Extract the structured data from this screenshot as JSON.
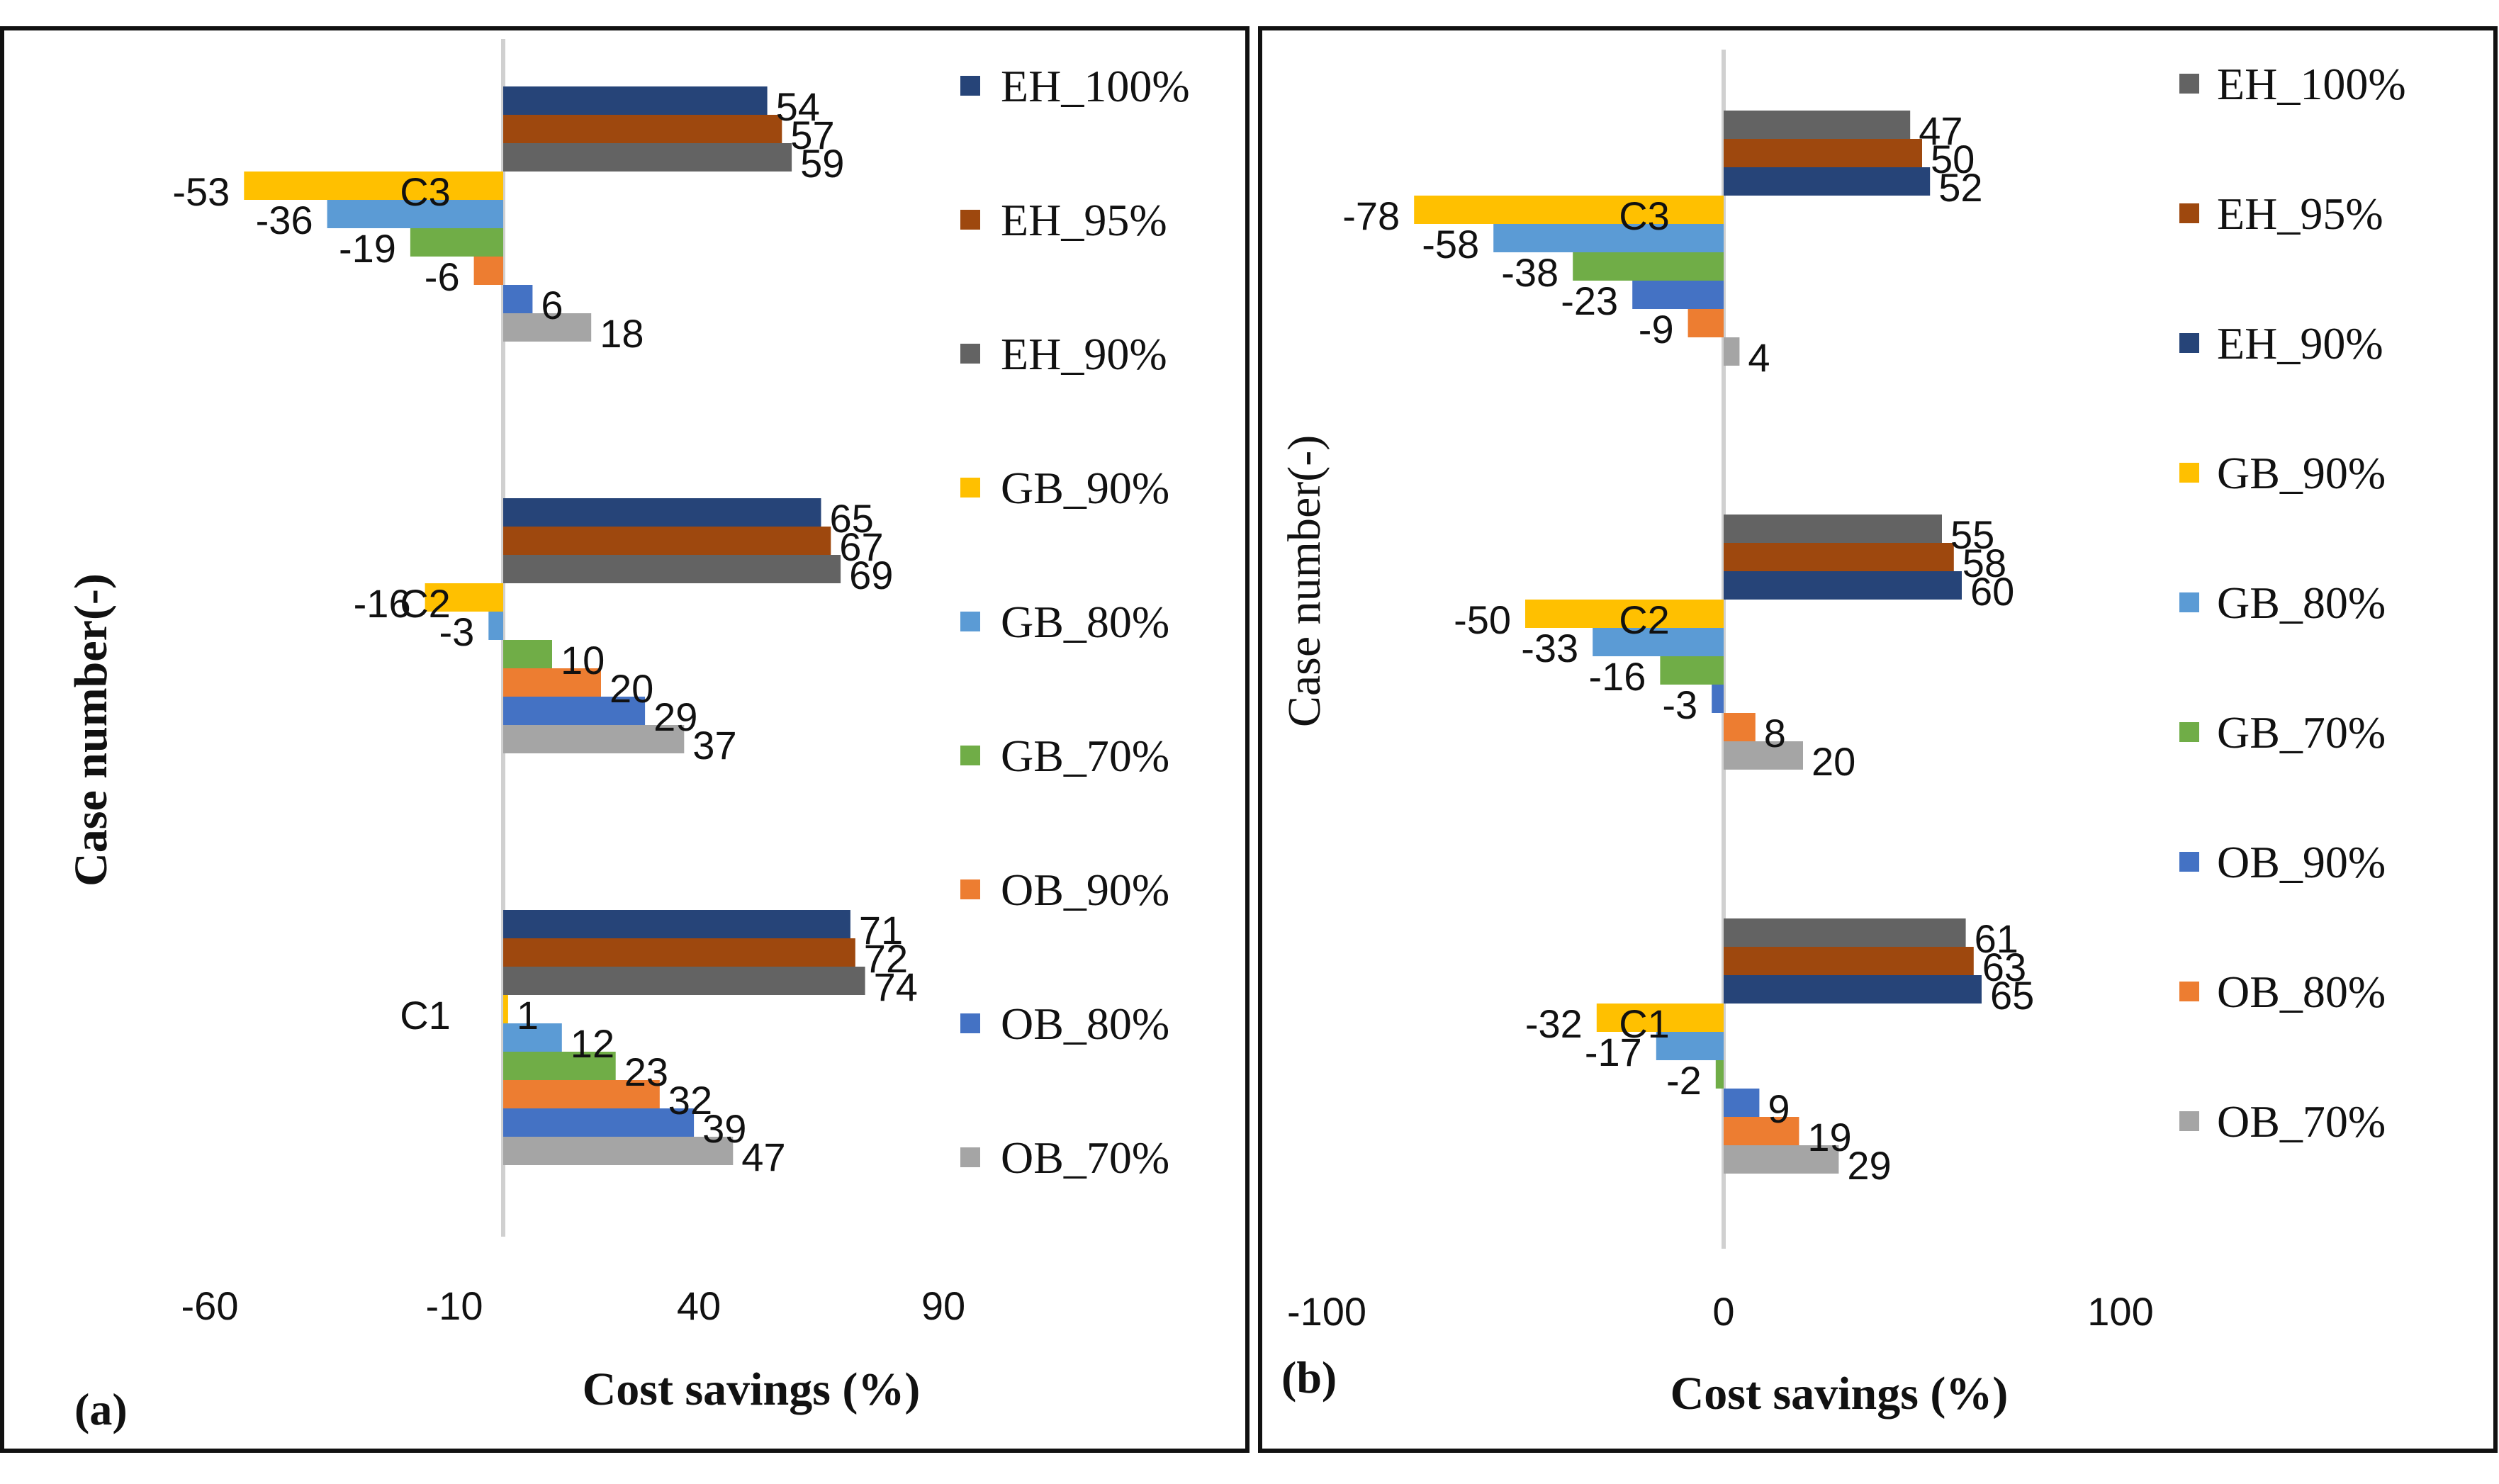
{
  "chart_data": [
    {
      "type": "bar",
      "orientation": "horizontal",
      "panel_tag": "(a)",
      "title": "",
      "xlabel": "Cost savings (%)",
      "ylabel": "Case number(-)",
      "xlim": [
        -60,
        90
      ],
      "xticks": [
        "-60",
        "-10",
        "40",
        "90"
      ],
      "xtick_values": [
        -60,
        -10,
        40,
        90
      ],
      "categories": [
        "C1",
        "C2",
        "C3"
      ],
      "legend_position": "right",
      "series": [
        {
          "name": "EH_100%",
          "color": "#264478",
          "values": [
            71,
            65,
            54
          ],
          "labels": [
            "71",
            "65",
            "54"
          ]
        },
        {
          "name": "EH_95%",
          "color": "#9E480E",
          "values": [
            72,
            67,
            57
          ],
          "labels": [
            "72",
            "67",
            "57"
          ]
        },
        {
          "name": "EH_90%",
          "color": "#636363",
          "values": [
            74,
            69,
            59
          ],
          "labels": [
            "74",
            "69",
            "59"
          ]
        },
        {
          "name": "GB_90%",
          "color": "#FFC000",
          "values": [
            1,
            -16,
            -53
          ],
          "labels": [
            "1",
            "-16",
            "-53"
          ]
        },
        {
          "name": "GB_80%",
          "color": "#5B9BD5",
          "values": [
            12,
            -3,
            -36
          ],
          "labels": [
            "12",
            "-3",
            "-36"
          ]
        },
        {
          "name": "GB_70%",
          "color": "#70AD47",
          "values": [
            23,
            10,
            -19
          ],
          "labels": [
            "23",
            "10",
            "-19"
          ]
        },
        {
          "name": "OB_90%",
          "color": "#ED7D31",
          "values": [
            32,
            20,
            -6
          ],
          "labels": [
            "32",
            "20",
            "-6"
          ]
        },
        {
          "name": "OB_80%",
          "color": "#4472C4",
          "values": [
            39,
            29,
            6
          ],
          "labels": [
            "39",
            "29",
            "6"
          ]
        },
        {
          "name": "OB_70%",
          "color": "#A5A5A5",
          "values": [
            47,
            37,
            18
          ],
          "labels": [
            "47",
            "37",
            "18"
          ]
        }
      ]
    },
    {
      "type": "bar",
      "orientation": "horizontal",
      "panel_tag": "(b)",
      "title": "",
      "xlabel": "Cost savings (%)",
      "ylabel": "Case number(-)",
      "xlim": [
        -100,
        100
      ],
      "xticks": [
        "-100",
        "0",
        "100"
      ],
      "xtick_values": [
        -100,
        0,
        100
      ],
      "categories": [
        "C1",
        "C2",
        "C3"
      ],
      "legend_position": "right",
      "series": [
        {
          "name": "EH_100%",
          "color": "#636363",
          "values": [
            61,
            55,
            47
          ],
          "labels": [
            "61",
            "55",
            "47"
          ]
        },
        {
          "name": "EH_95%",
          "color": "#9E480E",
          "values": [
            63,
            58,
            50
          ],
          "labels": [
            "63",
            "58",
            "50"
          ]
        },
        {
          "name": "EH_90%",
          "color": "#264478",
          "values": [
            65,
            60,
            52
          ],
          "labels": [
            "65",
            "60",
            "52"
          ]
        },
        {
          "name": "GB_90%",
          "color": "#FFC000",
          "values": [
            -32,
            -50,
            -78
          ],
          "labels": [
            "-32",
            "-50",
            "-78"
          ]
        },
        {
          "name": "GB_80%",
          "color": "#5B9BD5",
          "values": [
            -17,
            -33,
            -58
          ],
          "labels": [
            "-17",
            "-33",
            "-58"
          ]
        },
        {
          "name": "GB_70%",
          "color": "#70AD47",
          "values": [
            -2,
            -16,
            -38
          ],
          "labels": [
            "-2",
            "-16",
            "-38"
          ]
        },
        {
          "name": "OB_90%",
          "color": "#4472C4",
          "values": [
            9,
            -3,
            -23
          ],
          "labels": [
            "9",
            "-3",
            "-23"
          ]
        },
        {
          "name": "OB_80%",
          "color": "#ED7D31",
          "values": [
            19,
            8,
            -9
          ],
          "labels": [
            "19",
            "8",
            "-9"
          ]
        },
        {
          "name": "OB_70%",
          "color": "#A5A5A5",
          "values": [
            29,
            20,
            4
          ],
          "labels": [
            "29",
            "20",
            "4"
          ]
        }
      ]
    }
  ]
}
